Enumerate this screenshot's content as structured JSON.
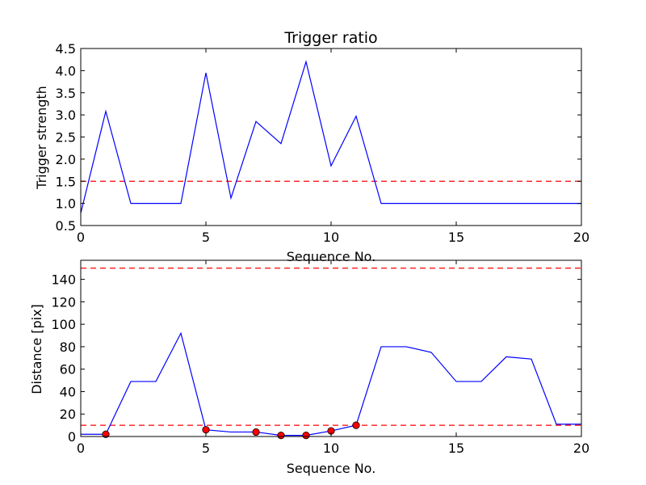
{
  "chart_data": [
    {
      "type": "line",
      "title": "Trigger ratio",
      "xlabel": "Sequence No.",
      "ylabel": "Trigger strength",
      "xlim": [
        0,
        20
      ],
      "ylim": [
        0.5,
        4.5
      ],
      "xticks": [
        0,
        5,
        10,
        15,
        20
      ],
      "xtick_labels": [
        "0",
        "5",
        "10",
        "15",
        "20"
      ],
      "yticks": [
        0.5,
        1.0,
        1.5,
        2.0,
        2.5,
        3.0,
        3.5,
        4.0,
        4.5
      ],
      "ytick_labels": [
        "0.5",
        "1.0",
        "1.5",
        "2.0",
        "2.5",
        "3.0",
        "3.5",
        "4.0",
        "4.5"
      ],
      "grid": false,
      "series": [
        {
          "color": "#0000ff",
          "x": [
            0,
            1,
            2,
            3,
            4,
            5,
            6,
            7,
            8,
            9,
            10,
            11,
            12,
            13,
            14,
            15,
            16,
            17,
            18,
            19,
            20
          ],
          "y": [
            0.78,
            3.08,
            1.0,
            1.0,
            1.0,
            3.95,
            1.12,
            2.85,
            2.35,
            4.2,
            1.85,
            2.97,
            1.0,
            1.0,
            1.0,
            1.0,
            1.0,
            1.0,
            1.0,
            1.0,
            1.0
          ]
        }
      ],
      "hlines": [
        {
          "y": 1.5,
          "color": "#ff0000",
          "style": "dashed"
        }
      ],
      "markers": []
    },
    {
      "type": "line",
      "title": "",
      "xlabel": "Sequence No.",
      "ylabel": "Distance [pix]",
      "xlim": [
        0,
        20
      ],
      "ylim": [
        0,
        157
      ],
      "xticks": [
        0,
        5,
        10,
        15,
        20
      ],
      "xtick_labels": [
        "0",
        "5",
        "10",
        "15",
        "20"
      ],
      "yticks": [
        0,
        20,
        40,
        60,
        80,
        100,
        120,
        140
      ],
      "ytick_labels": [
        "0",
        "20",
        "40",
        "60",
        "80",
        "100",
        "120",
        "140"
      ],
      "grid": false,
      "series": [
        {
          "color": "#0000ff",
          "x": [
            0,
            1,
            2,
            3,
            4,
            5,
            6,
            7,
            8,
            9,
            10,
            11,
            12,
            13,
            14,
            15,
            16,
            17,
            18,
            19,
            20
          ],
          "y": [
            2,
            2,
            49,
            49,
            92,
            6,
            4,
            4,
            1,
            1,
            5,
            10,
            80,
            80,
            75,
            49,
            49,
            71,
            69,
            11,
            11
          ]
        }
      ],
      "hlines": [
        {
          "y": 10,
          "color": "#ff0000",
          "style": "dashed"
        },
        {
          "y": 150,
          "color": "#ff0000",
          "style": "dashed"
        }
      ],
      "markers": [
        {
          "x": 1,
          "y": 2
        },
        {
          "x": 5,
          "y": 6
        },
        {
          "x": 7,
          "y": 4
        },
        {
          "x": 8,
          "y": 1
        },
        {
          "x": 9,
          "y": 1
        },
        {
          "x": 10,
          "y": 5
        },
        {
          "x": 11,
          "y": 10
        }
      ],
      "marker_color": "#ff0000"
    }
  ]
}
